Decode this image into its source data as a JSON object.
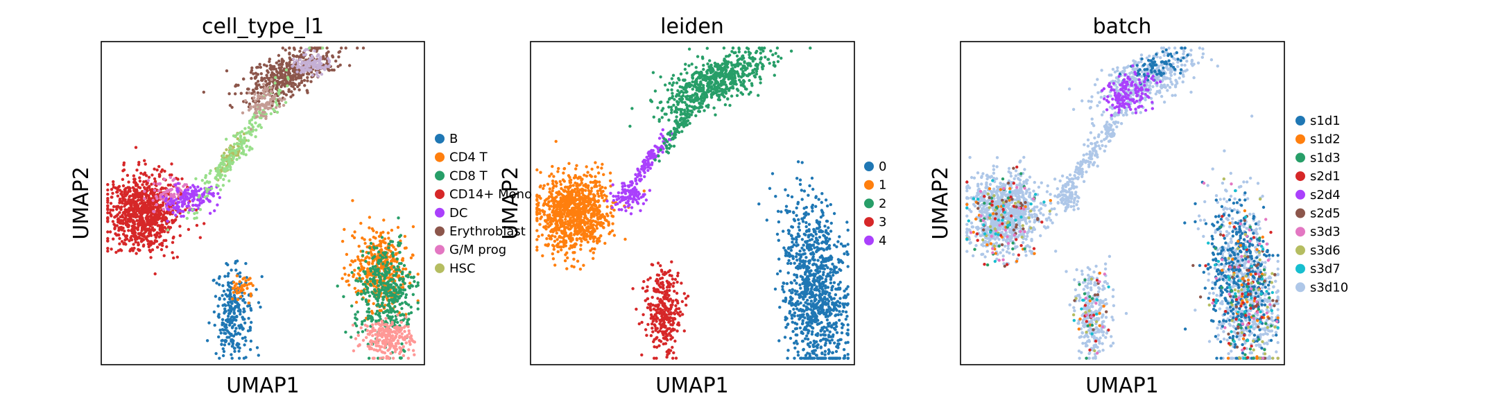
{
  "chart_data": [
    {
      "type": "scatter",
      "title": "cell_type_l1",
      "xlabel": "UMAP1",
      "ylabel": "UMAP2",
      "legend_position": "right-outside",
      "grid": false,
      "categories": [
        {
          "name": "B",
          "color": "#1f77b4"
        },
        {
          "name": "CD4 T",
          "color": "#ff7f0e"
        },
        {
          "name": "CD8 T",
          "color": "#279e68"
        },
        {
          "name": "CD14+ Mono",
          "color": "#d62728"
        },
        {
          "name": "DC",
          "color": "#aa40fc"
        },
        {
          "name": "Erythroblast",
          "color": "#8c564b"
        },
        {
          "name": "G/M prog",
          "color": "#e377c2"
        },
        {
          "name": "HSC",
          "color": "#b5bd61"
        }
      ]
    },
    {
      "type": "scatter",
      "title": "leiden",
      "xlabel": "UMAP1",
      "ylabel": "UMAP2",
      "legend_position": "right-outside",
      "grid": false,
      "categories": [
        {
          "name": "0",
          "color": "#1f77b4"
        },
        {
          "name": "1",
          "color": "#ff7f0e"
        },
        {
          "name": "2",
          "color": "#279e68"
        },
        {
          "name": "3",
          "color": "#d62728"
        },
        {
          "name": "4",
          "color": "#aa40fc"
        }
      ]
    },
    {
      "type": "scatter",
      "title": "batch",
      "xlabel": "UMAP1",
      "ylabel": "UMAP2",
      "legend_position": "right-outside",
      "grid": false,
      "categories": [
        {
          "name": "s1d1",
          "color": "#1f77b4"
        },
        {
          "name": "s1d2",
          "color": "#ff7f0e"
        },
        {
          "name": "s1d3",
          "color": "#279e68"
        },
        {
          "name": "s2d1",
          "color": "#d62728"
        },
        {
          "name": "s2d4",
          "color": "#aa40fc"
        },
        {
          "name": "s2d5",
          "color": "#8c564b"
        },
        {
          "name": "s3d3",
          "color": "#e377c2"
        },
        {
          "name": "s3d6",
          "color": "#b5bd61"
        },
        {
          "name": "s3d7",
          "color": "#17becf"
        },
        {
          "name": "s3d10",
          "color": "#aec7e8"
        }
      ]
    }
  ]
}
